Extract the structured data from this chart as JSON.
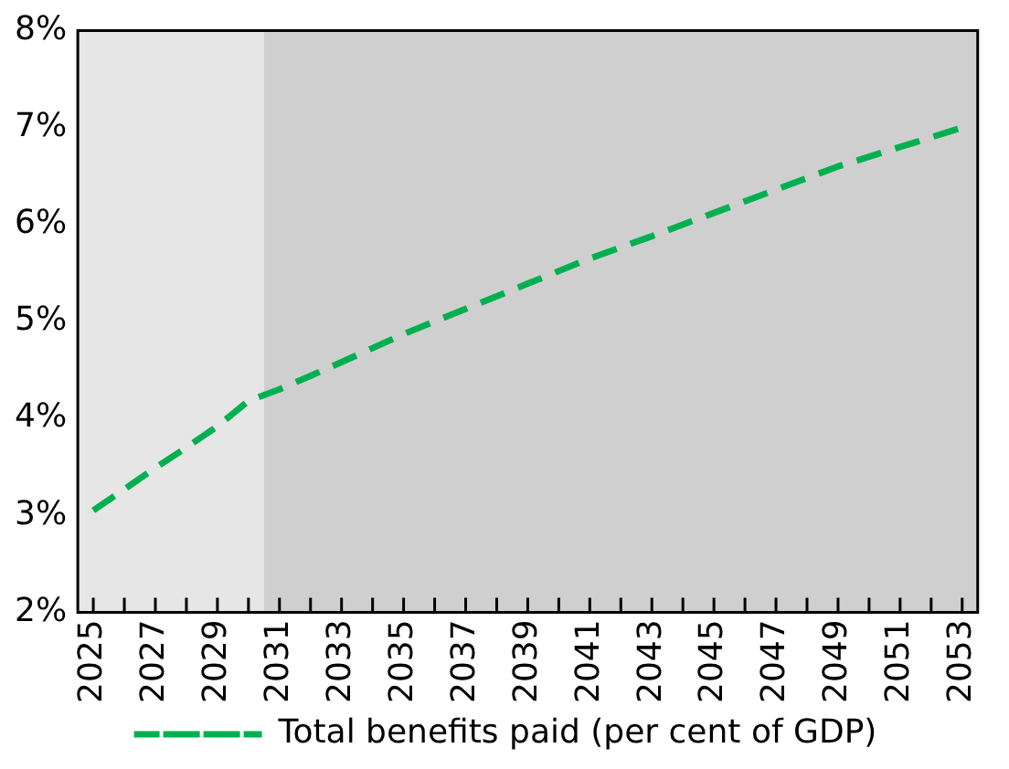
{
  "chart_data": {
    "type": "line",
    "x": [
      2025,
      2026,
      2027,
      2028,
      2029,
      2030,
      2031,
      2032,
      2033,
      2035,
      2037,
      2039,
      2041,
      2043,
      2045,
      2047,
      2049,
      2051,
      2053
    ],
    "series": [
      {
        "name": "Total benefits paid (per cent of GDP)",
        "color": "#00b050",
        "values": [
          3.05,
          3.27,
          3.49,
          3.7,
          3.92,
          4.18,
          4.3,
          4.44,
          4.58,
          4.87,
          5.13,
          5.39,
          5.65,
          5.88,
          6.12,
          6.36,
          6.6,
          6.8,
          7.0
        ]
      }
    ],
    "xlim": [
      2024.5,
      2053.5
    ],
    "xticks": [
      2025,
      {
        "value": 2026,
        "label": null
      },
      2027,
      {
        "value": 2028,
        "label": null
      },
      2029,
      {
        "value": 2030,
        "label": null
      },
      2031,
      {
        "value": 2032,
        "label": null
      },
      2033,
      {
        "value": 2034,
        "label": null
      },
      2035,
      {
        "value": 2036,
        "label": null
      },
      2037,
      {
        "value": 2038,
        "label": null
      },
      2039,
      {
        "value": 2040,
        "label": null
      },
      2041,
      {
        "value": 2042,
        "label": null
      },
      2043,
      {
        "value": 2044,
        "label": null
      },
      2045,
      {
        "value": 2046,
        "label": null
      },
      2047,
      {
        "value": 2048,
        "label": null
      },
      2049,
      {
        "value": 2050,
        "label": null
      },
      2051,
      {
        "value": 2052,
        "label": null
      },
      2053
    ],
    "ylim": [
      2,
      8
    ],
    "yticks": [
      {
        "value": 2,
        "label": "2%"
      },
      {
        "value": 3,
        "label": "3%"
      },
      {
        "value": 4,
        "label": "4%"
      },
      {
        "value": 5,
        "label": "5%"
      },
      {
        "value": 6,
        "label": "6%"
      },
      {
        "value": 7,
        "label": "7%"
      },
      {
        "value": 8,
        "label": "8%"
      }
    ],
    "bands": [
      {
        "axis": "x",
        "from": 2024.5,
        "to": 2030.5,
        "color": "#e6e6e6"
      },
      {
        "axis": "x",
        "from": 2030.5,
        "to": 2053.5,
        "color": "#d0cfd0"
      }
    ],
    "legend": "bottom",
    "marker": "none",
    "line_style": "dashed"
  }
}
